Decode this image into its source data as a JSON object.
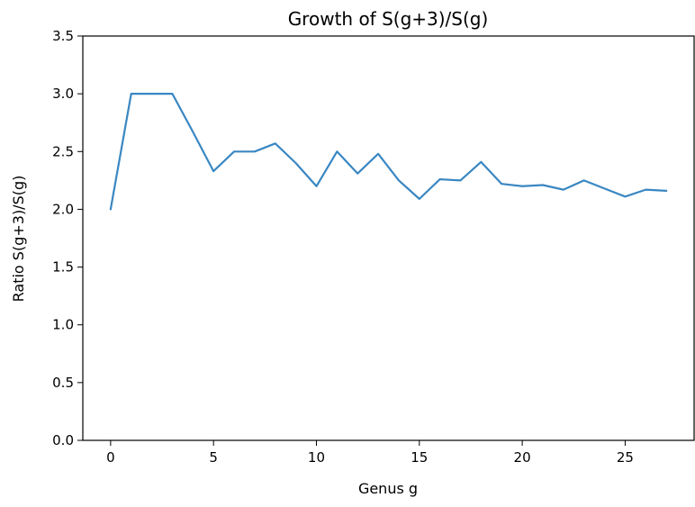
{
  "chart_data": {
    "type": "line",
    "title": "Growth of S(g+3)/S(g)",
    "xlabel": "Genus g",
    "ylabel": "Ratio S(g+3)/S(g)",
    "xlim": [
      -1.35,
      28.35
    ],
    "ylim": [
      0,
      3.5
    ],
    "xticks": [
      0,
      5,
      10,
      15,
      20,
      25
    ],
    "yticks": [
      0.0,
      0.5,
      1.0,
      1.5,
      2.0,
      2.5,
      3.0,
      3.5
    ],
    "ytick_labels": [
      "0.0",
      "0.5",
      "1.0",
      "1.5",
      "2.0",
      "2.5",
      "3.0",
      "3.5"
    ],
    "grid": false,
    "line_color": "#3a87c2",
    "x": [
      0,
      1,
      2,
      3,
      4,
      5,
      6,
      7,
      8,
      9,
      10,
      11,
      12,
      13,
      14,
      15,
      16,
      17,
      18,
      19,
      20,
      21,
      22,
      23,
      24,
      25,
      26,
      27
    ],
    "values": [
      2.0,
      3.0,
      3.0,
      3.0,
      2.67,
      2.33,
      2.5,
      2.5,
      2.57,
      2.4,
      2.2,
      2.5,
      2.31,
      2.48,
      2.25,
      2.09,
      2.26,
      2.25,
      2.41,
      2.22,
      2.2,
      2.21,
      2.17,
      2.25,
      2.18,
      2.11,
      2.17,
      2.16
    ]
  }
}
